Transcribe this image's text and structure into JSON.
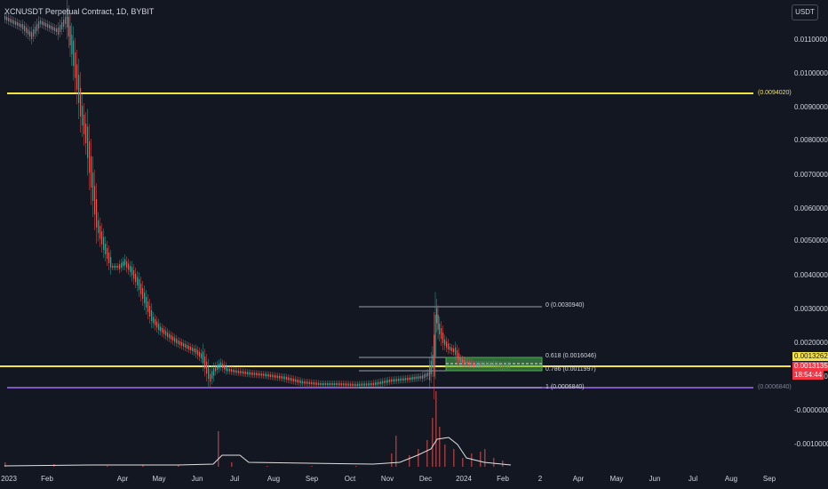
{
  "header": {
    "title": "XCNUSDT Perpetual Contract, 1D, BYBIT",
    "currency": "USDT"
  },
  "price_axis": {
    "ticks": [
      "0.0110000",
      "0.0100000",
      "0.0090000",
      "0.0080000",
      "0.0070000",
      "0.0060000",
      "0.0050000",
      "0.0040000",
      "0.0030000",
      "0.0020000",
      "0.0010000",
      "-0.0000000",
      "-0.0010000"
    ]
  },
  "time_axis": {
    "ticks": [
      "2023",
      "Feb",
      "Apr",
      "May",
      "Jun",
      "Jul",
      "Aug",
      "Sep",
      "Oct",
      "Nov",
      "Dec",
      "2024",
      "Feb",
      "2",
      "Apr",
      "May",
      "Jun",
      "Jul",
      "Aug",
      "Sep"
    ]
  },
  "horizontal_lines": {
    "upper": {
      "label": "(0.0094020)",
      "color": "#f5e342"
    },
    "middle": {
      "color": "#f5e342"
    },
    "lower": {
      "label": "(0.0006840)",
      "color": "#7e57c2"
    }
  },
  "fibonacci": {
    "levels": [
      {
        "text": "0 (0.0030940)"
      },
      {
        "text": "0.618 (0.0016046)"
      },
      {
        "text": "0.786 (0.0011997)"
      },
      {
        "text": "1 (0.0006840)"
      }
    ]
  },
  "price_tags": {
    "yellow": {
      "value": "0.0013262",
      "bg": "#f5e342",
      "fg": "#131722"
    },
    "red": {
      "value": "0.0013135",
      "bg": "#f23645",
      "fg": "#ffffff"
    },
    "countdown": {
      "value": "18:54:44",
      "bg": "#f23645",
      "fg": "#ffffff"
    }
  },
  "colors": {
    "bull": "#26a69a",
    "bear": "#ef5350",
    "background": "#131722",
    "text": "#d1d4dc"
  }
}
